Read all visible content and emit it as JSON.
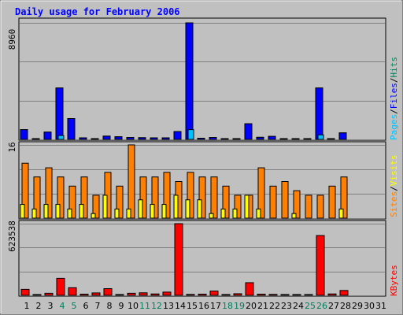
{
  "title": "Daily usage for February 2006",
  "colors": {
    "background": "#c0c0c0",
    "title_text": "#0000ff",
    "grid": "#808080",
    "hits": "#00805c",
    "files": "#0000ff",
    "pages": "#00c0ff",
    "visits": "#ffff00",
    "sites": "#ff8000",
    "kbytes": "#ff0000",
    "weekend_day": "#00805c",
    "weekday_day": "#000000",
    "separator": "#000000"
  },
  "labels": {
    "pages": "Pages",
    "files": "Files",
    "hits": "Hits",
    "sites": "Sites",
    "visits": "Visits",
    "kbytes": "KBytes",
    "sep": "/"
  },
  "chart_data": {
    "type": "bar",
    "x": {
      "days": [
        "1",
        "2",
        "3",
        "4",
        "5",
        "6",
        "7",
        "8",
        "9",
        "10",
        "11",
        "12",
        "13",
        "14",
        "15",
        "16",
        "17",
        "18",
        "19",
        "20",
        "21",
        "22",
        "23",
        "24",
        "25",
        "26",
        "27",
        "28",
        "29",
        "30",
        "31"
      ],
      "weekend_days": [
        "4",
        "5",
        "11",
        "12",
        "18",
        "19",
        "25",
        "26"
      ]
    },
    "panels": [
      {
        "id": "hits",
        "ymax": 8960,
        "ymax_label": "8960",
        "series": [
          {
            "name": "Hits",
            "values": [
              750,
              0,
              560,
              3950,
              1600,
              120,
              60,
              250,
              200,
              150,
              130,
              120,
              120,
              600,
              8960,
              90,
              150,
              40,
              60,
              1200,
              160,
              230,
              40,
              40,
              40,
              3950,
              0,
              500,
              0,
              0,
              0
            ]
          },
          {
            "name": "Files",
            "values": [
              750,
              0,
              560,
              3950,
              1600,
              120,
              60,
              250,
              200,
              150,
              130,
              120,
              120,
              600,
              8960,
              90,
              150,
              40,
              60,
              1200,
              160,
              230,
              40,
              40,
              40,
              3950,
              0,
              500,
              0,
              0,
              0
            ]
          },
          {
            "name": "Pages",
            "values": [
              0,
              0,
              0,
              300,
              0,
              0,
              0,
              0,
              0,
              0,
              0,
              0,
              0,
              0,
              750,
              0,
              0,
              0,
              0,
              0,
              0,
              0,
              0,
              0,
              0,
              350,
              0,
              0,
              0,
              0,
              0
            ]
          }
        ]
      },
      {
        "id": "visits",
        "ymax": 16,
        "ymax_label": "16",
        "series": [
          {
            "name": "Sites",
            "values": [
              12,
              9,
              11,
              9,
              7,
              9,
              5,
              10,
              7,
              16,
              9,
              9,
              10,
              8,
              10,
              9,
              9,
              7,
              5,
              5,
              11,
              7,
              8,
              6,
              5,
              5,
              7,
              9,
              0,
              0,
              0
            ]
          },
          {
            "name": "Visits",
            "values": [
              3,
              2,
              3,
              3,
              2,
              3,
              1,
              5,
              2,
              2,
              4,
              3,
              3,
              5,
              4,
              4,
              1,
              2,
              2,
              5,
              2,
              0,
              0,
              1,
              0,
              0,
              0,
              2,
              0,
              0,
              0
            ]
          }
        ]
      },
      {
        "id": "kbytes",
        "ymax": 623538,
        "ymax_label": "623538",
        "series": [
          {
            "name": "KBytes",
            "values": [
              52000,
              5000,
              18000,
              148000,
              66000,
              10000,
              21000,
              58000,
              7000,
              18000,
              22000,
              12000,
              28000,
              623538,
              8000,
              10000,
              37000,
              7000,
              14000,
              110000,
              10000,
              8000,
              5000,
              5000,
              5000,
              520000,
              12000,
              42000,
              0,
              0,
              0
            ]
          }
        ]
      }
    ]
  }
}
